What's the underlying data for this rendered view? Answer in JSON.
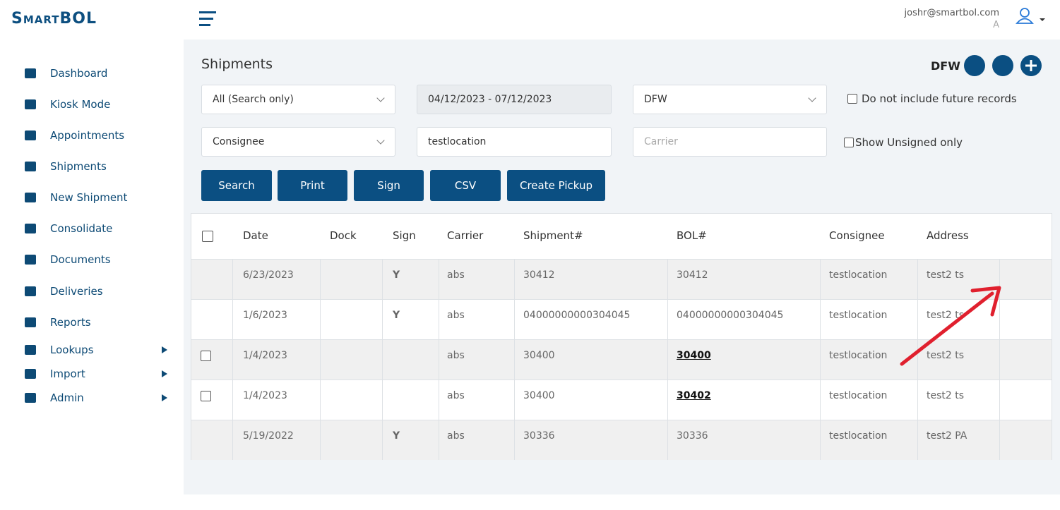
{
  "header": {
    "logo": "SmartBOL",
    "user_email": "joshr@smartbol.com",
    "user_initial": "A"
  },
  "sidebar": {
    "items": [
      {
        "label": "Dashboard"
      },
      {
        "label": "Kiosk Mode"
      },
      {
        "label": "Appointments"
      },
      {
        "label": "Shipments"
      },
      {
        "label": "New Shipment"
      },
      {
        "label": "Consolidate"
      },
      {
        "label": "Documents"
      },
      {
        "label": "Deliveries"
      },
      {
        "label": "Reports"
      },
      {
        "label": "Lookups",
        "submenu": true
      },
      {
        "label": "Import",
        "submenu": true
      },
      {
        "label": "Admin",
        "submenu": true
      }
    ]
  },
  "page": {
    "title": "Shipments",
    "location": "DFW"
  },
  "filters": {
    "type_select": "All (Search only)",
    "date_range": "04/12/2023 - 07/12/2023",
    "location_select": "DFW",
    "future_checkbox": "Do not include future records",
    "party_select": "Consignee",
    "party_input": "testlocation",
    "carrier_placeholder": "Carrier",
    "unsigned_checkbox": "Show Unsigned only"
  },
  "buttons": [
    "Search",
    "Print",
    "Sign",
    "CSV",
    "Create Pickup"
  ],
  "table": {
    "columns": [
      "Date",
      "Dock",
      "Sign",
      "Carrier",
      "Shipment#",
      "BOL#",
      "Consignee",
      "Address"
    ],
    "rows": [
      {
        "checkbox": false,
        "date": "6/23/2023",
        "sign": "Y",
        "carrier": "abs",
        "shipment": "30412",
        "bol": "30412",
        "bol_link": false,
        "consignee": "testlocation",
        "address": "test2 ts"
      },
      {
        "checkbox": false,
        "date": "1/6/2023",
        "sign": "Y",
        "carrier": "abs",
        "shipment": "04000000000304045",
        "bol": "04000000000304045",
        "bol_link": false,
        "consignee": "testlocation",
        "address": "test2 ts"
      },
      {
        "checkbox": true,
        "date": "1/4/2023",
        "carrier": "abs",
        "shipment": "30400",
        "bol": "30400",
        "bol_link": true,
        "consignee": "testlocation",
        "address": "test2 ts"
      },
      {
        "checkbox": true,
        "date": "1/4/2023",
        "carrier": "abs",
        "shipment": "30400",
        "bol": "30402",
        "bol_link": true,
        "consignee": "testlocation",
        "address": "test2 ts"
      },
      {
        "checkbox": false,
        "date": "5/19/2022",
        "sign": "Y",
        "carrier": "abs",
        "shipment": "30336",
        "bol": "30336",
        "bol_link": false,
        "consignee": "testlocation",
        "address": "test2 PA"
      }
    ]
  }
}
